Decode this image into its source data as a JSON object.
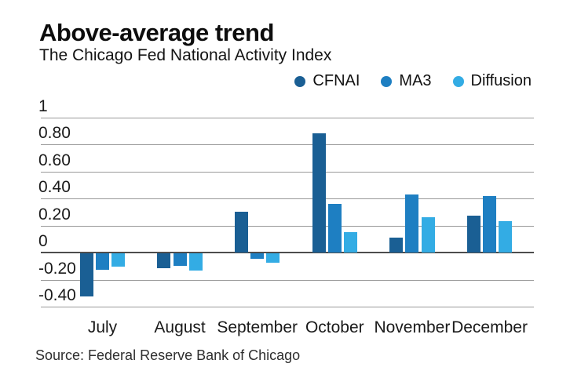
{
  "header": {
    "title": "Above-average trend",
    "subtitle": "The Chicago Fed National Activity Index"
  },
  "legend": [
    {
      "label": "CFNAI",
      "color": "#1a5f94"
    },
    {
      "label": "MA3",
      "color": "#1e7fc2"
    },
    {
      "label": "Diffusion",
      "color": "#33ace4"
    }
  ],
  "chart_data": {
    "type": "bar",
    "title": "Above-average trend",
    "subtitle": "The Chicago Fed National Activity Index",
    "categories": [
      "July",
      "August",
      "September",
      "October",
      "November",
      "December"
    ],
    "series": [
      {
        "name": "CFNAI",
        "color": "#1a5f94",
        "values": [
          -0.32,
          -0.11,
          0.3,
          0.88,
          0.11,
          0.27
        ]
      },
      {
        "name": "MA3",
        "color": "#1e7fc2",
        "values": [
          -0.12,
          -0.09,
          -0.04,
          0.36,
          0.43,
          0.42
        ]
      },
      {
        "name": "Diffusion",
        "color": "#33ace4",
        "values": [
          -0.1,
          -0.13,
          -0.07,
          0.15,
          0.26,
          0.23
        ]
      }
    ],
    "ylim": [
      -0.4,
      1
    ],
    "yticks": [
      1,
      0.8,
      0.6,
      0.4,
      0.2,
      0,
      -0.2,
      -0.4
    ],
    "ytick_labels": [
      "1",
      "0.80",
      "0.60",
      "0.40",
      "0.20",
      "0",
      "-0.20",
      "-0.40"
    ],
    "xlabel": "",
    "ylabel": "",
    "grid": true,
    "legend_position": "top-right"
  },
  "source": "Source: Federal Reserve Bank of Chicago"
}
